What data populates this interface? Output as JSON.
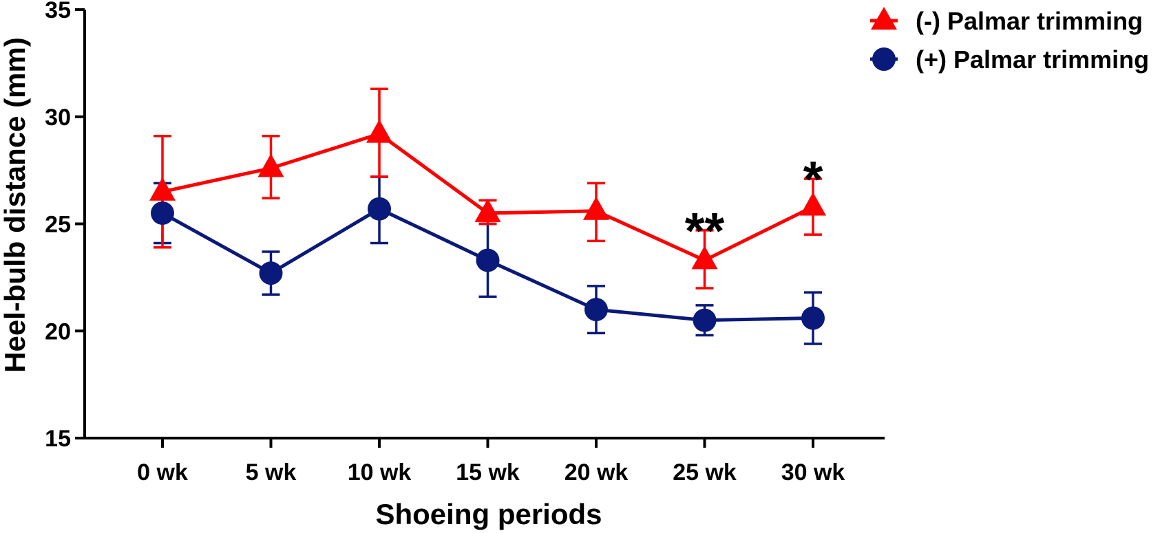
{
  "chart_data": {
    "type": "line",
    "xlabel": "Shoeing periods",
    "ylabel": "Heel-bulb distance (mm)",
    "categories": [
      "0 wk",
      "5 wk",
      "10 wk",
      "15 wk",
      "20 wk",
      "25 wk",
      "30 wk"
    ],
    "ylim": [
      15,
      35
    ],
    "yticks": [
      15,
      20,
      25,
      30,
      35
    ],
    "legend_position": "top-right",
    "grid": false,
    "series": [
      {
        "name": "(-) Palmar trimming",
        "color": "#ff0000",
        "marker": "triangle",
        "values": [
          26.5,
          27.6,
          29.2,
          25.5,
          25.6,
          23.3,
          25.8
        ],
        "err_low": [
          23.9,
          26.2,
          27.2,
          25.0,
          24.2,
          22.0,
          24.5
        ],
        "err_high": [
          29.1,
          29.1,
          31.3,
          26.1,
          26.9,
          24.7,
          27.1
        ]
      },
      {
        "name": "(+) Palmar trimming",
        "color": "#0a1a7a",
        "marker": "circle",
        "values": [
          25.5,
          22.7,
          25.7,
          23.3,
          21.0,
          20.5,
          20.6
        ],
        "err_low": [
          24.1,
          21.7,
          24.1,
          21.6,
          19.9,
          19.8,
          19.4
        ],
        "err_high": [
          26.9,
          23.7,
          27.2,
          25.0,
          22.1,
          21.2,
          21.8
        ]
      }
    ],
    "annotations": [
      {
        "category": "25 wk",
        "text": "**"
      },
      {
        "category": "30 wk",
        "text": "*"
      }
    ]
  }
}
